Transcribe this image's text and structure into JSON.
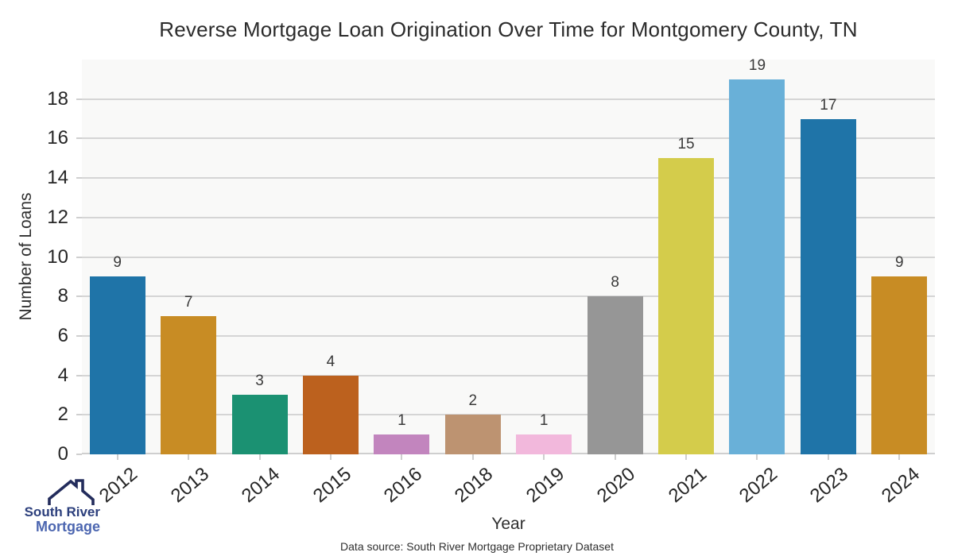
{
  "chart_data": {
    "type": "bar",
    "title": "Reverse Mortgage Loan Origination Over Time for Montgomery County, TN",
    "xlabel": "Year",
    "ylabel": "Number of Loans",
    "categories": [
      "2012",
      "2013",
      "2014",
      "2015",
      "2016",
      "2018",
      "2019",
      "2020",
      "2021",
      "2022",
      "2023",
      "2024"
    ],
    "values": [
      9,
      7,
      3,
      4,
      1,
      2,
      1,
      8,
      15,
      19,
      17,
      9
    ],
    "bar_colors": [
      "#1f74a8",
      "#c88c24",
      "#1b9172",
      "#bc611e",
      "#c285be",
      "#bd9371",
      "#f2b8dc",
      "#969696",
      "#d4cc4b",
      "#69b0d8",
      "#1f74a8",
      "#c88c24"
    ],
    "ylim": [
      0,
      20
    ],
    "yticks": [
      0,
      2,
      4,
      6,
      8,
      10,
      12,
      14,
      16,
      18
    ],
    "grid": true,
    "legend_position": "none",
    "plot_bg_color": "#f9f9f8",
    "gridline_color": "#d5d5d5",
    "axis_color": "#cfcfcf",
    "tick_label_color": "#262626",
    "value_label_color": "#3a3a3a"
  },
  "footer": {
    "source_note": "Data source: South River Mortgage Proprietary Dataset"
  },
  "logo": {
    "line1": "South River",
    "line2": "Mortgage",
    "line1_color": "#2c3f7c",
    "line2_color": "#4c66b0",
    "roof_color": "#232c5c"
  }
}
